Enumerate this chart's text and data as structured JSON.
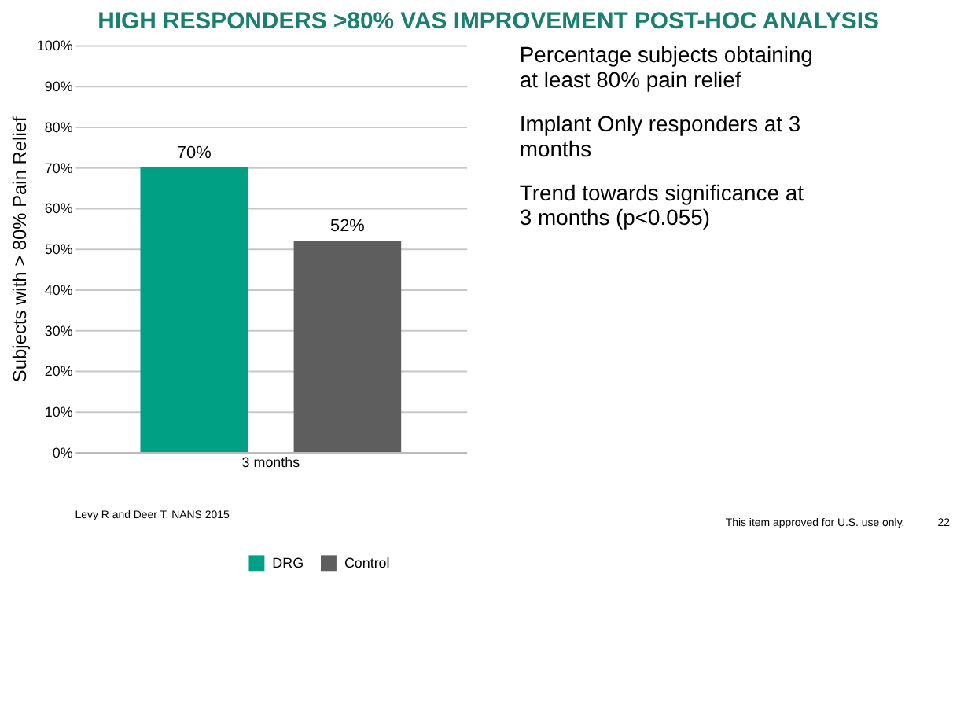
{
  "chart_data": {
    "type": "bar",
    "title": "HIGH RESPONDERS >80% VAS IMPROVEMENT POST-HOC ANALYSIS",
    "ylabel": "Subjects with > 80% Pain Relief",
    "categories": [
      "3 months"
    ],
    "series": [
      {
        "name": "DRG",
        "color": "#00a085",
        "values": [
          70
        ],
        "value_labels": [
          "70%"
        ]
      },
      {
        "name": "Control",
        "color": "#5e5e5e",
        "values": [
          52
        ],
        "value_labels": [
          "52%"
        ]
      }
    ],
    "ylim": [
      0,
      100
    ],
    "yticks": [
      {
        "value": 0,
        "label": "0%"
      },
      {
        "value": 10,
        "label": "10%"
      },
      {
        "value": 20,
        "label": "20%"
      },
      {
        "value": 30,
        "label": "30%"
      },
      {
        "value": 40,
        "label": "40%"
      },
      {
        "value": 50,
        "label": "50%"
      },
      {
        "value": 60,
        "label": "60%"
      },
      {
        "value": 70,
        "label": "70%"
      },
      {
        "value": 80,
        "label": "80%"
      },
      {
        "value": 90,
        "label": "90%"
      },
      {
        "value": 100,
        "label": "100%"
      }
    ],
    "grid": "y",
    "legend": "bottom",
    "annotations": [
      "Percentage subjects obtaining at least 80% pain relief",
      "Implant Only responders at 3 months",
      "Trend towards significance at 3 months (p<0.055)",
      "Levy R and Deer T. NANS 2015",
      "This item approved for U.S. use only.",
      "22"
    ]
  }
}
